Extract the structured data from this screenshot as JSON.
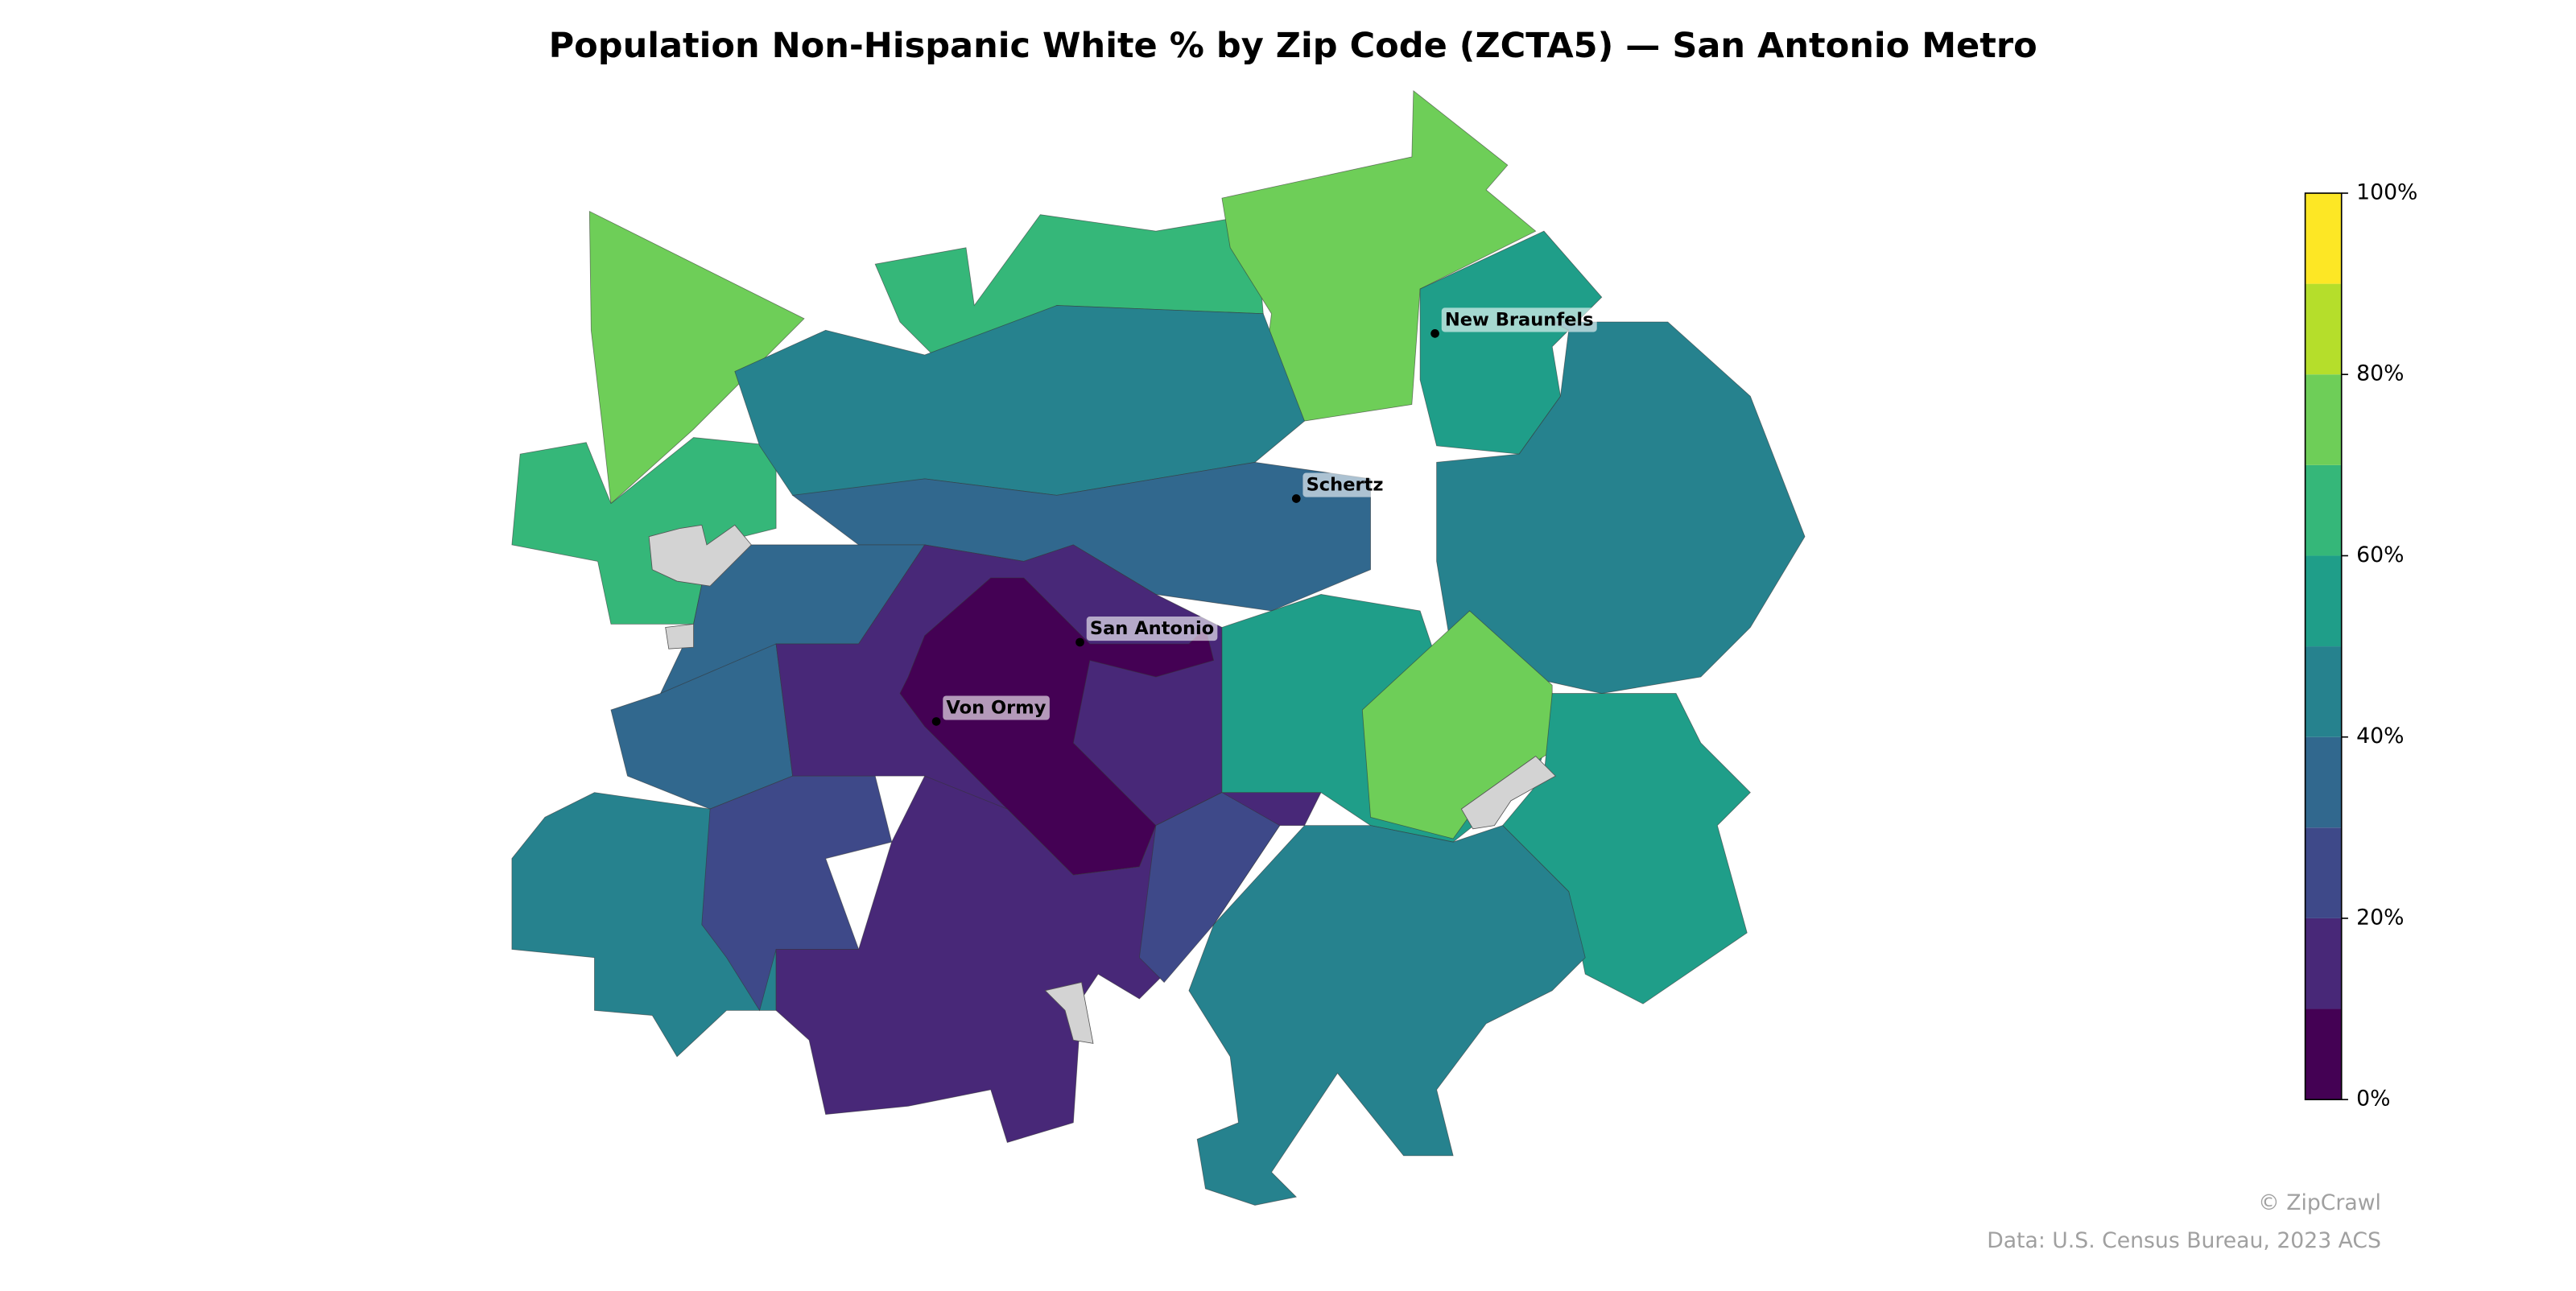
{
  "chart_data": {
    "type": "choropleth",
    "title": "Population Non-Hispanic White % by Zip Code (ZCTA5) — San Antonio Metro",
    "values": [
      75,
      65,
      65,
      75,
      55,
      45,
      45,
      35,
      35,
      35,
      45,
      25,
      15,
      5,
      15,
      25,
      55,
      75,
      55,
      45
    ],
    "colorbar": {
      "lim": [
        0,
        100
      ],
      "bins": [
        0,
        10,
        20,
        30,
        40,
        50,
        60,
        70,
        80,
        90,
        100
      ],
      "colors": [
        "#440154",
        "#482878",
        "#3e4989",
        "#31688e",
        "#26828e",
        "#1f9e89",
        "#35b779",
        "#6ece58",
        "#b5de2b",
        "#fde725"
      ],
      "ticks": [
        {
          "value": 0,
          "label": "0%"
        },
        {
          "value": 20,
          "label": "20%"
        },
        {
          "value": 40,
          "label": "40%"
        },
        {
          "value": 60,
          "label": "60%"
        },
        {
          "value": 80,
          "label": "80%"
        },
        {
          "value": 100,
          "label": "100%"
        }
      ]
    },
    "cities": [
      "New Braunfels",
      "Schertz",
      "San Antonio",
      "Von Ormy"
    ]
  },
  "footer": {
    "credit": "© ZipCrawl",
    "source": "Data: U.S. Census Bureau, 2023 ACS"
  }
}
